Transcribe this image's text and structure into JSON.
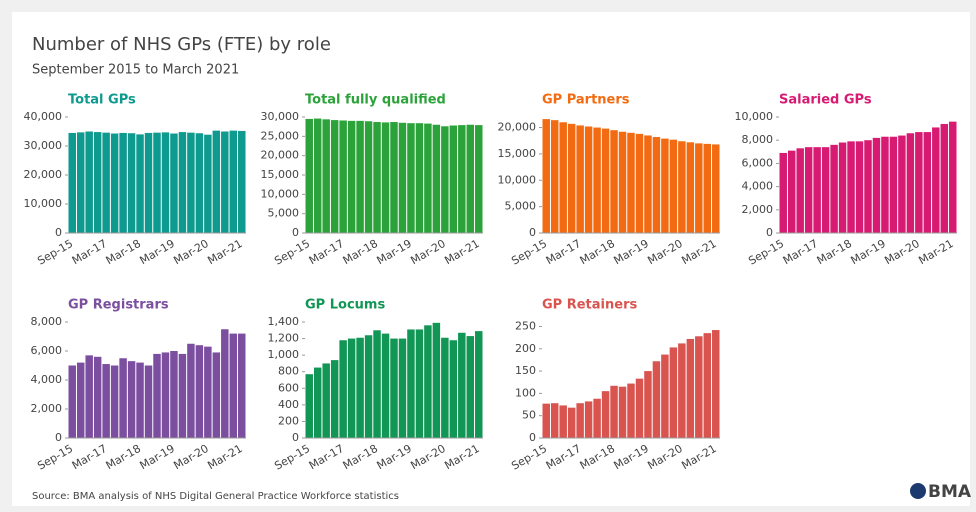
{
  "title": "Number of NHS GPs (FTE) by role",
  "subtitle": "September 2015 to March 2021",
  "source": "Source: BMA analysis of NHS Digital General Practice Workforce statistics",
  "logo": "BMA",
  "chart_data": [
    {
      "type": "bar",
      "title": "Total GPs",
      "color": "#0e9a8e",
      "categories": [
        "Sep-15",
        null,
        null,
        null,
        "Mar-17",
        null,
        null,
        null,
        "Mar-18",
        null,
        null,
        null,
        "Mar-19",
        null,
        null,
        null,
        "Mar-20",
        null,
        null,
        null,
        "Mar-21"
      ],
      "values": [
        34500,
        34700,
        35000,
        34800,
        34600,
        34300,
        34500,
        34400,
        34000,
        34500,
        34600,
        34700,
        34300,
        34800,
        34600,
        34400,
        33900,
        35300,
        35000,
        35300,
        35200
      ],
      "ylim": [
        0,
        40000
      ],
      "yticks": [
        0,
        {
          "value": 10000,
          "label": "10,000"
        },
        {
          "value": 20000,
          "label": "20,000"
        },
        {
          "value": 30000,
          "label": "30,000"
        },
        {
          "value": 40000,
          "label": "40,000"
        }
      ]
    },
    {
      "type": "bar",
      "title": "Total fully qualified",
      "color": "#2ca33a",
      "categories": [
        "Sep-15",
        null,
        null,
        null,
        "Mar-17",
        null,
        null,
        null,
        "Mar-18",
        null,
        null,
        null,
        "Mar-19",
        null,
        null,
        null,
        "Mar-20",
        null,
        null,
        null,
        "Mar-21"
      ],
      "values": [
        29500,
        29600,
        29400,
        29200,
        29100,
        29000,
        29000,
        28900,
        28700,
        28600,
        28700,
        28500,
        28400,
        28400,
        28300,
        28000,
        27600,
        27800,
        27900,
        28000,
        27900
      ],
      "ylim": [
        0,
        30000
      ],
      "yticks": [
        0,
        {
          "value": 5000,
          "label": "5,000"
        },
        {
          "value": 10000,
          "label": "10,000"
        },
        {
          "value": 15000,
          "label": "15,000"
        },
        {
          "value": 20000,
          "label": "20,000"
        },
        {
          "value": 25000,
          "label": "25,000"
        },
        {
          "value": 30000,
          "label": "30,000"
        }
      ]
    },
    {
      "type": "bar",
      "title": "GP Partners",
      "color": "#f26b12",
      "categories": [
        "Sep-15",
        null,
        null,
        null,
        "Mar-17",
        null,
        null,
        null,
        "Mar-18",
        null,
        null,
        null,
        "Mar-19",
        null,
        null,
        null,
        "Mar-20",
        null,
        null,
        null,
        "Mar-21"
      ],
      "values": [
        21600,
        21400,
        21000,
        20700,
        20400,
        20200,
        20000,
        19800,
        19500,
        19200,
        19000,
        18800,
        18500,
        18200,
        17900,
        17700,
        17400,
        17200,
        17000,
        16900,
        16800
      ],
      "ylim": [
        0,
        22000
      ],
      "yticks": [
        0,
        {
          "value": 5000,
          "label": "5,000"
        },
        {
          "value": 10000,
          "label": "10,000"
        },
        {
          "value": 15000,
          "label": "15,000"
        },
        {
          "value": 20000,
          "label": "20,000"
        }
      ]
    },
    {
      "type": "bar",
      "title": "Salaried GPs",
      "color": "#d81b72",
      "categories": [
        "Sep-15",
        null,
        null,
        null,
        "Mar-17",
        null,
        null,
        null,
        "Mar-18",
        null,
        null,
        null,
        "Mar-19",
        null,
        null,
        null,
        "Mar-20",
        null,
        null,
        null,
        "Mar-21"
      ],
      "values": [
        6900,
        7100,
        7300,
        7400,
        7400,
        7400,
        7600,
        7800,
        7900,
        7900,
        8000,
        8200,
        8300,
        8300,
        8400,
        8600,
        8700,
        8700,
        9100,
        9400,
        9600
      ],
      "ylim": [
        0,
        10000
      ],
      "yticks": [
        0,
        {
          "value": 2000,
          "label": "2,000"
        },
        {
          "value": 4000,
          "label": "4,000"
        },
        {
          "value": 6000,
          "label": "6,000"
        },
        {
          "value": 8000,
          "label": "8,000"
        },
        {
          "value": 10000,
          "label": "10,000"
        }
      ]
    },
    {
      "type": "bar",
      "title": "GP Registrars",
      "color": "#7b4ea0",
      "categories": [
        "Sep-15",
        null,
        null,
        null,
        "Mar-17",
        null,
        null,
        null,
        "Mar-18",
        null,
        null,
        null,
        "Mar-19",
        null,
        null,
        null,
        "Mar-20",
        null,
        null,
        null,
        "Mar-21"
      ],
      "values": [
        5000,
        5200,
        5700,
        5600,
        5100,
        5000,
        5500,
        5300,
        5200,
        5000,
        5800,
        5900,
        6000,
        5800,
        6500,
        6400,
        6300,
        5900,
        7500,
        7200,
        7200
      ],
      "ylim": [
        0,
        8000
      ],
      "yticks": [
        0,
        {
          "value": 2000,
          "label": "2,000"
        },
        {
          "value": 4000,
          "label": "4,000"
        },
        {
          "value": 6000,
          "label": "6,000"
        },
        {
          "value": 8000,
          "label": "8,000"
        }
      ]
    },
    {
      "type": "bar",
      "title": "GP Locums",
      "color": "#119655",
      "categories": [
        "Sep-15",
        null,
        null,
        null,
        "Mar-17",
        null,
        null,
        null,
        "Mar-18",
        null,
        null,
        null,
        "Mar-19",
        null,
        null,
        null,
        "Mar-20",
        null,
        null,
        null,
        "Mar-21"
      ],
      "values": [
        770,
        850,
        900,
        940,
        1180,
        1200,
        1210,
        1240,
        1300,
        1260,
        1200,
        1200,
        1310,
        1310,
        1360,
        1390,
        1210,
        1180,
        1270,
        1230,
        1290
      ],
      "ylim": [
        0,
        1400
      ],
      "yticks": [
        0,
        200,
        400,
        600,
        800,
        {
          "value": 1000,
          "label": "1,000"
        },
        {
          "value": 1200,
          "label": "1,200"
        },
        {
          "value": 1400,
          "label": "1,400"
        }
      ]
    },
    {
      "type": "bar",
      "title": "GP Retainers",
      "color": "#d9534f",
      "categories": [
        "Sep-15",
        null,
        null,
        null,
        "Mar-17",
        null,
        null,
        null,
        "Mar-18",
        null,
        null,
        null,
        "Mar-19",
        null,
        null,
        null,
        "Mar-20",
        null,
        null,
        null,
        "Mar-21"
      ],
      "values": [
        77,
        78,
        73,
        68,
        78,
        82,
        88,
        105,
        117,
        115,
        122,
        133,
        150,
        172,
        187,
        203,
        212,
        222,
        228,
        235,
        242
      ],
      "ylim": [
        0,
        260
      ],
      "yticks": [
        0,
        50,
        100,
        150,
        200,
        250
      ]
    }
  ]
}
